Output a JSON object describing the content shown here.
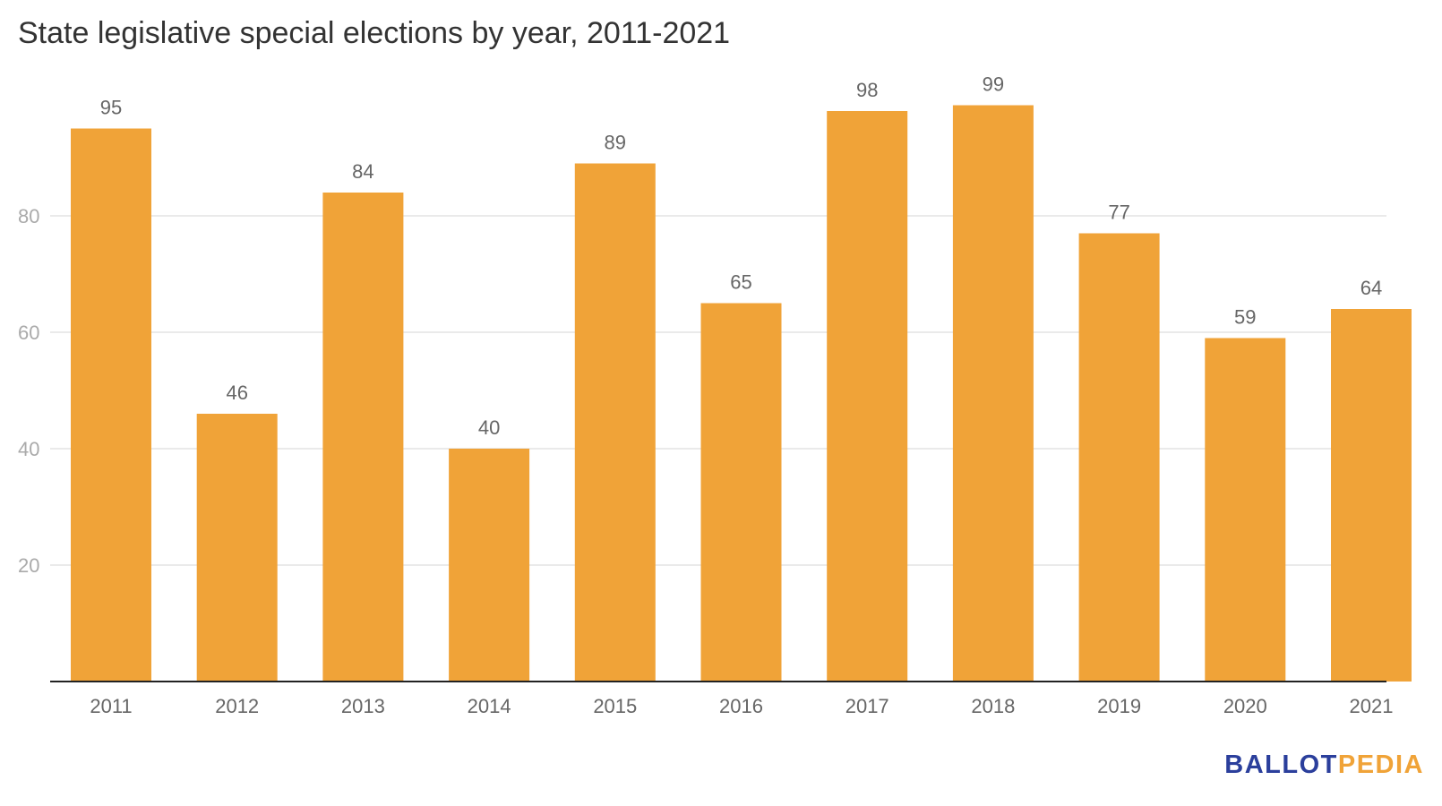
{
  "chart_data": {
    "type": "bar",
    "title": "State legislative special elections by year, 2011-2021",
    "xlabel": "",
    "ylabel": "",
    "categories": [
      "2011",
      "2012",
      "2013",
      "2014",
      "2015",
      "2016",
      "2017",
      "2018",
      "2019",
      "2020",
      "2021"
    ],
    "values": [
      95,
      46,
      84,
      40,
      89,
      65,
      98,
      99,
      77,
      59,
      64
    ],
    "data_labels": [
      "95",
      "46",
      "84",
      "40",
      "89",
      "65",
      "98",
      "99",
      "77",
      "59",
      "64"
    ],
    "y_ticks": [
      20,
      40,
      60,
      80
    ],
    "y_tick_labels": [
      "20",
      "40",
      "60",
      "80"
    ],
    "ylim": [
      0,
      100
    ],
    "grid": true,
    "legend": "none"
  },
  "colors": {
    "bar": "#f0a338",
    "grid": "#e3e3e3",
    "axis": "#222222",
    "tick_label": "#666666",
    "y_tick_label": "#aaaaaa",
    "data_label": "#666666",
    "title": "#333333",
    "brand_primary": "#2b3f9c",
    "brand_accent": "#f0a338"
  },
  "branding": {
    "part1": "BALLOT",
    "part2": "PEDIA"
  }
}
